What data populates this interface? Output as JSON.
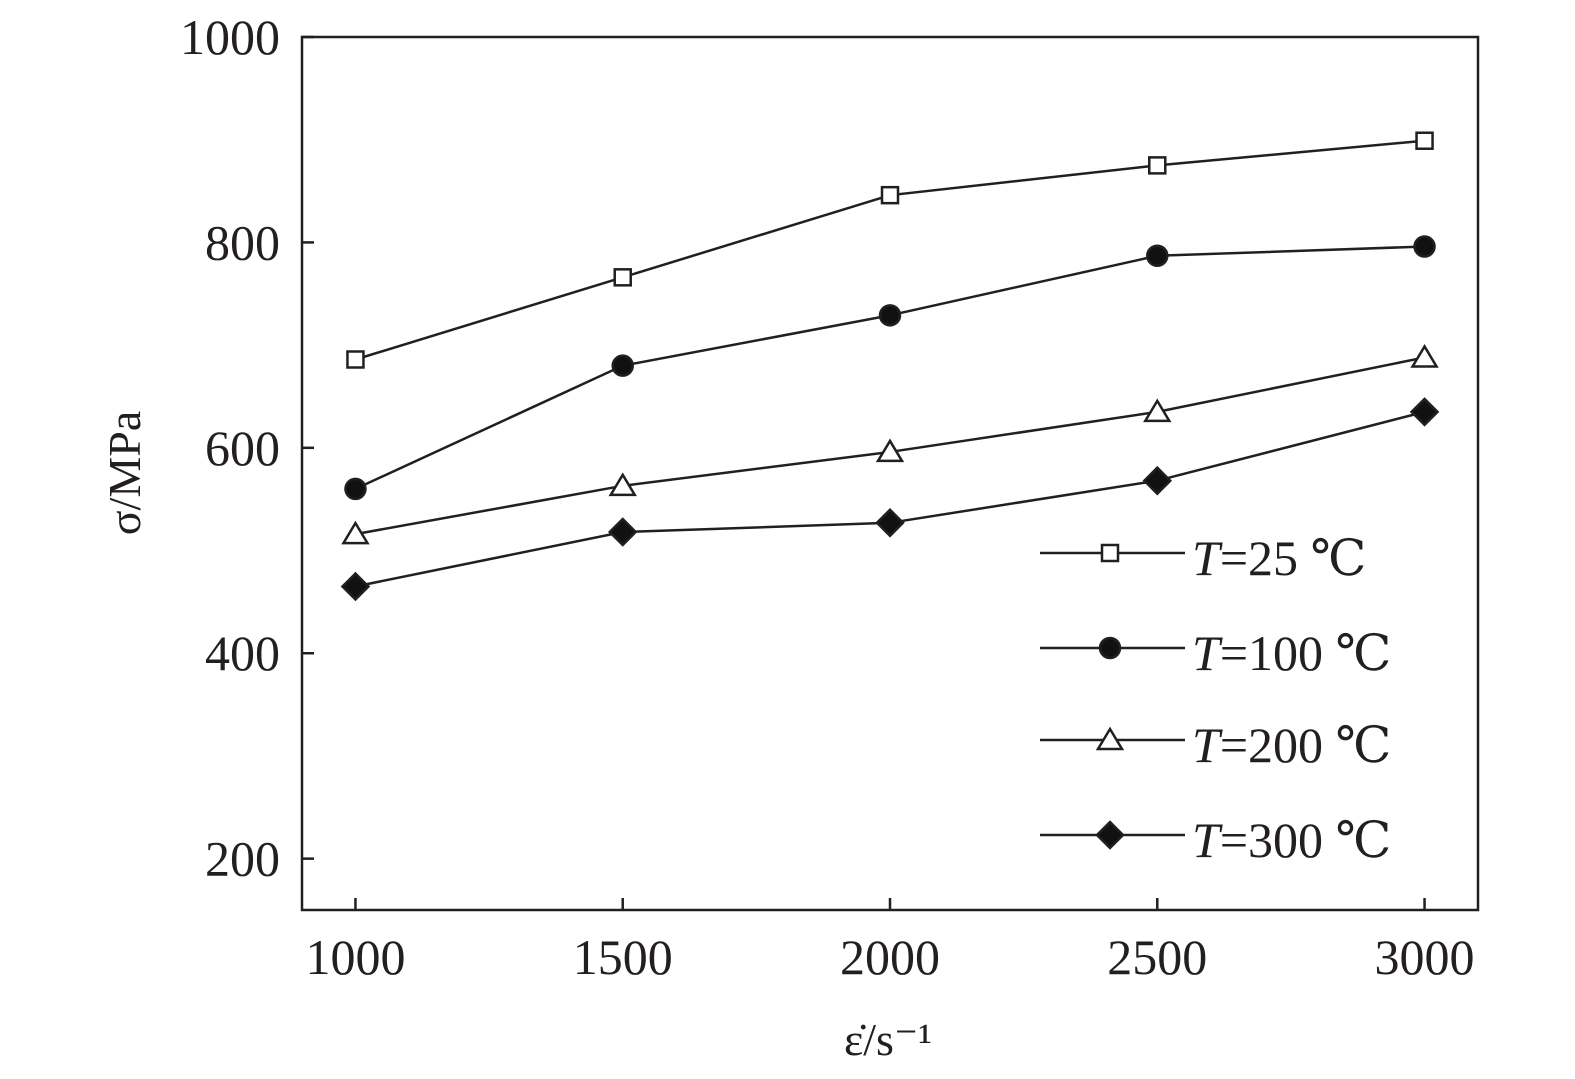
{
  "chart_data": {
    "type": "line",
    "title": "",
    "xlabel": "ε̇/s⁻¹",
    "ylabel": "σ/MPa",
    "xlim": [
      900,
      3100
    ],
    "ylim": [
      150,
      1000
    ],
    "xticks": [
      1000,
      1500,
      2000,
      2500,
      3000
    ],
    "yticks": [
      200,
      400,
      600,
      800,
      1000
    ],
    "grid": false,
    "legend_position": "bottom-right",
    "x": [
      1000,
      1500,
      2000,
      2500,
      3000
    ],
    "series": [
      {
        "name": "T=25 ℃",
        "marker": "square-open",
        "values": [
          686,
          766,
          846,
          875,
          899
        ]
      },
      {
        "name": "T=100 ℃",
        "marker": "circle-filled",
        "values": [
          560,
          680,
          729,
          787,
          796
        ]
      },
      {
        "name": "T=200 ℃",
        "marker": "triangle-open",
        "values": [
          516,
          563,
          596,
          635,
          688
        ]
      },
      {
        "name": "T=300 ℃",
        "marker": "diamond-filled",
        "values": [
          465,
          518,
          527,
          568,
          635
        ]
      }
    ],
    "colors": {
      "line": "#231f20",
      "marker_fill": "#111111"
    }
  }
}
